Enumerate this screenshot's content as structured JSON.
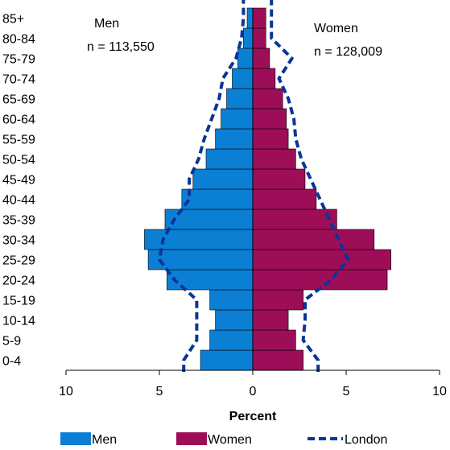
{
  "chart_data": {
    "type": "bar",
    "subtype": "population-pyramid",
    "categories": [
      "0-4",
      "5-9",
      "10-14",
      "15-19",
      "20-24",
      "25-29",
      "30-34",
      "35-39",
      "40-44",
      "45-49",
      "50-54",
      "55-59",
      "60-64",
      "65-69",
      "70-74",
      "75-79",
      "80-84",
      "85+"
    ],
    "series": [
      {
        "name": "Men",
        "side": "left",
        "color": "#0b7fd4",
        "values": [
          2.8,
          2.3,
          2.0,
          2.3,
          4.6,
          5.6,
          5.8,
          4.7,
          3.8,
          3.2,
          2.5,
          2.0,
          1.7,
          1.4,
          1.1,
          0.8,
          0.5,
          0.3
        ]
      },
      {
        "name": "Women",
        "side": "right",
        "color": "#9e0e58",
        "values": [
          2.7,
          2.3,
          1.9,
          2.7,
          7.2,
          7.4,
          6.5,
          4.5,
          3.4,
          2.8,
          2.3,
          1.9,
          1.8,
          1.6,
          1.2,
          0.9,
          0.7,
          0.7
        ]
      },
      {
        "name": "London",
        "style": "dashed-line",
        "color": "#0a3596",
        "men_values": [
          3.7,
          3.0,
          3.0,
          3.0,
          4.2,
          5.0,
          4.8,
          4.2,
          3.4,
          3.4,
          2.9,
          2.6,
          2.2,
          1.8,
          1.6,
          0.9,
          0.6,
          0.5
        ],
        "women_values": [
          3.5,
          2.7,
          2.8,
          2.8,
          4.2,
          5.1,
          4.6,
          4.1,
          3.6,
          3.1,
          2.6,
          2.3,
          2.2,
          1.9,
          1.4,
          2.1,
          1.0,
          1.0
        ]
      }
    ],
    "men_label": "Men",
    "men_n": "n = 113,550",
    "women_label": "Women",
    "women_n": "n = 128,009",
    "xlabel": "Percent",
    "x_ticks": [
      -10,
      -5,
      0,
      5,
      10
    ],
    "x_tick_labels": [
      "10",
      "5",
      "0",
      "5",
      "10"
    ],
    "xlim": [
      -10,
      10
    ],
    "grid": false,
    "legend_position": "bottom",
    "legend": [
      "Men",
      "Women",
      "London"
    ]
  }
}
